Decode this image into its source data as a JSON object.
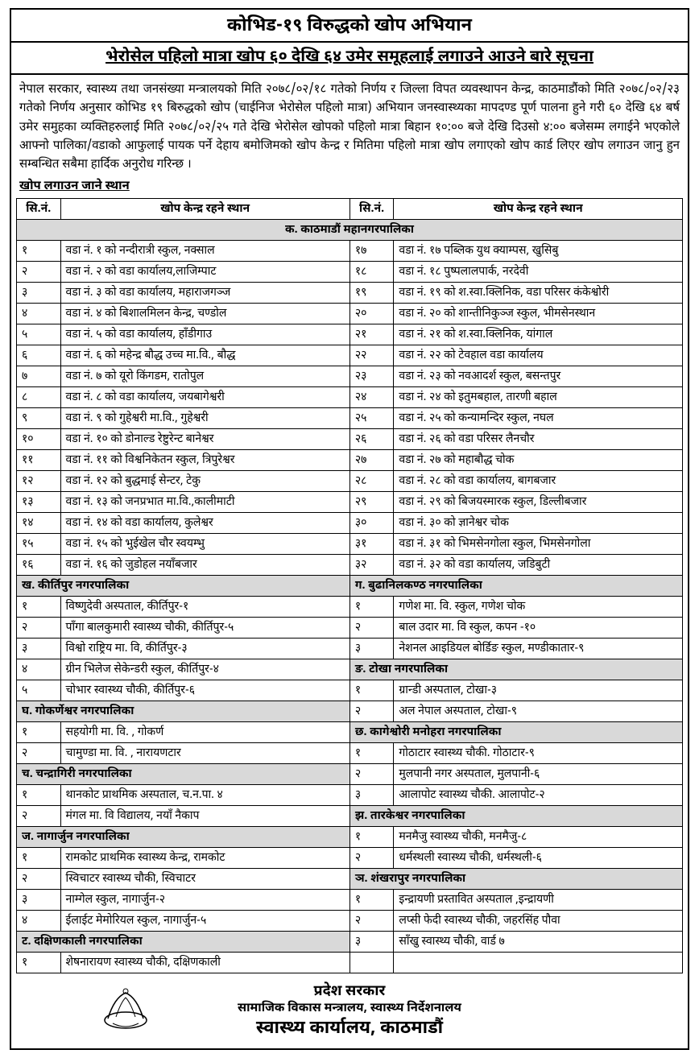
{
  "header": {
    "main": "कोभिड-१९ विरुद्धको खोप अभियान",
    "sub": "भेरोसेल पहिलो मात्रा खोप ६० देखि ६४ उमेर समूहलाई लगाउने आउने बारे सूचना"
  },
  "notice": "नेपाल सरकार, स्वास्थ्य तथा जनसंख्या मन्त्रालयको मिति २०७८/०२/१८ गतेको निर्णय र जिल्ला विपत व्यवस्थापन केन्द्र, काठमाडौंको मिति २०७८/०२/२३ गतेको निर्णय अनुसार कोभिड १९ बिरुद्धको खोप (चाईनिज भेरोसेल पहिलो मात्रा) अभियान जनस्वास्थ्यका मापदण्ड पूर्ण पालना हुने गरी ६० देखि ६४ बर्ष उमेर समुहका व्यक्तिहरुलाई मिति २०७८/०२/२५ गते देखि भेरोसेल खोपको पहिलो मात्रा बिहान १०:०० बजे देखि दिउसो ४:०० बजेसम्म लगाईने भएकोले आफ्नो पालिका/वडाको आफुलाई पायक पर्ने देहाय बमोजिमको खोप केन्द्र र मितिमा पहिलो मात्रा खोप लगाएको खोप कार्ड लिएर खोप लगाउन जानु हुन सम्बन्धित सबैमा हार्दिक अनुरोध गरिन्छ ।",
  "sectionLabel": "खोप लगाउन जाने स्थान",
  "columns": {
    "sn": "सि.नं.",
    "loc": "खोप केन्द्र रहने स्थान"
  },
  "ktmHeader": "क. काठमाडौं महानगरपालिका",
  "ktm": [
    {
      "ln": "१",
      "ll": "वडा नं. १ को नन्दीरात्री स्कुल, नक्साल",
      "rn": "१७",
      "rl": "वडा नं. १७ पब्लिक युथ क्याम्पस, खुसिबु"
    },
    {
      "ln": "२",
      "ll": "वडा नं. २ को वडा कार्यालय,लाजिम्पाट",
      "rn": "१८",
      "rl": "वडा नं. १८ पुष्पलालपार्क, नरदेवी"
    },
    {
      "ln": "३",
      "ll": "वडा नं. ३ को वडा कार्यालय, महाराजगञ्ज",
      "rn": "१९",
      "rl": "वडा नं. १९ को श.स्वा.क्लिनिक, वडा परिसर कंकेश्वोरी"
    },
    {
      "ln": "४",
      "ll": "वडा नं. ४ को बिशालमिलन केन्द्र, चण्डोल",
      "rn": "२०",
      "rl": "वडा नं. २० को शान्तीनिकुञ्ज स्कुल, भीमसेनस्थान"
    },
    {
      "ln": "५",
      "ll": "वडा नं. ५ को वडा कार्यालय, हाँडीगाउ",
      "rn": "२१",
      "rl": "वडा नं. २१ को श.स्वा.क्लिनिक, यांगाल"
    },
    {
      "ln": "६",
      "ll": "वडा नं. ६ को महेन्द्र बौद्ध उच्च मा.वि., बौद्ध",
      "rn": "२२",
      "rl": "वडा नं. २२ को टेवहाल वडा कार्यालय"
    },
    {
      "ln": "७",
      "ll": "वडा नं. ७ को यूरो किंगडम, रातोपुल",
      "rn": "२३",
      "rl": "वडा नं. २३ को नवआदर्श स्कुल, बसन्तपुर"
    },
    {
      "ln": "८",
      "ll": "वडा नं. ८ को वडा कार्यालय, जयबागेश्वरी",
      "rn": "२४",
      "rl": "वडा नं. २४ को इतुमबहाल, तारणी बहाल"
    },
    {
      "ln": "९",
      "ll": "वडा नं. ९ को गुहेश्वरी मा.वि., गुहेश्वरी",
      "rn": "२५",
      "rl": "वडा नं. २५ को कन्यामन्दिर स्कुल, नघल"
    },
    {
      "ln": "१०",
      "ll": "वडा नं. १० को डोनाल्ड रेष्टुरेन्ट बानेश्वर",
      "rn": "२६",
      "rl": "वडा नं. २६ को वडा परिसर लैनचौर"
    },
    {
      "ln": "११",
      "ll": "वडा नं. ११ को विश्वनिकेतन स्कुल, त्रिपुरेश्वर",
      "rn": "२७",
      "rl": "वडा नं. २७ को महाबौद्ध चोक"
    },
    {
      "ln": "१२",
      "ll": "वडा नं. १२ को बुद्धमाई सेन्टर, टेकु",
      "rn": "२८",
      "rl": "वडा नं. २८ को वडा कार्यालय, बागबजार"
    },
    {
      "ln": "१३",
      "ll": "वडा नं. १३ को जनप्रभात मा.वि.,कालीमाटी",
      "rn": "२९",
      "rl": "वडा नं. २९ को बिजयस्मारक स्कुल, डिल्लीबजार"
    },
    {
      "ln": "१४",
      "ll": "वडा नं. १४ को वडा कार्यालय, कुलेश्वर",
      "rn": "३०",
      "rl": "वडा नं. ३० को ज्ञानेश्वर चोक"
    },
    {
      "ln": "१५",
      "ll": "वडा नं. १५ को भुईखेल चौर स्वयम्भु",
      "rn": "३१",
      "rl": "वडा नं. ३१ को भिमसेनगोला स्कुल, भिमसेनगोला"
    },
    {
      "ln": "१६",
      "ll": "वडा नं. १६ को जुडोहल नयाँबजार",
      "rn": "३२",
      "rl": "वडा नं. ३२ को वडा कार्यालय, जडिबुटी"
    }
  ],
  "lower": [
    {
      "type": "header",
      "left": "ख. कीर्तिपुर नगरपालिका",
      "right": "ग. बुढानिलकण्ठ नगरपालिका"
    },
    {
      "type": "row",
      "ls": "१",
      "ll": "विष्णुदेवी अस्पताल, कीर्तिपुर-१",
      "rs": "१",
      "rl": "गणेश मा. वि. स्कुल, गणेश  चोक"
    },
    {
      "type": "row",
      "ls": "२",
      "ll": "पाँगा बालकुमारी स्वास्थ्य चौकी, कीर्तिपुर-५",
      "rs": "२",
      "rl": "बाल उदार मा. वि स्कुल, कपन -१०"
    },
    {
      "type": "row",
      "ls": "३",
      "ll": "विश्वो राष्ट्रिय मा. वि, कीर्तिपुर-३",
      "rs": "३",
      "rl": "नेशनल आइडियल बोर्डिङ स्कुल, मण्डीकातार-९"
    },
    {
      "type": "lheader",
      "ls": "४",
      "ll": "ग्रीन भिलेज सेकेन्डरी स्कुल, कीर्तिपुर-४",
      "right": "ङ. टोखा नगरपालिका"
    },
    {
      "type": "row",
      "ls": "५",
      "ll": "चोभार स्वास्थ्य चौकी, कीर्तिपुर-६",
      "rs": "१",
      "rl": "ग्रान्डी अस्पताल, टोखा-३"
    },
    {
      "type": "rrow",
      "left": "घ. गोकर्णेश्वर नगरपालिका",
      "rs": "२",
      "rl": "अल नेपाल अस्पताल, टोखा-९"
    },
    {
      "type": "lheader",
      "ls": "१",
      "ll": "सहयोगी मा. वि. , गोकर्ण",
      "right": "छ. कागेश्वोरी मनोहरा नगरपालिका"
    },
    {
      "type": "row",
      "ls": "२",
      "ll": "चामुण्डा मा. वि. , नारायणटार",
      "rs": "१",
      "rl": "गोठाटार स्वास्थ्य चौकी. गोठाटार-९"
    },
    {
      "type": "rrow",
      "left": "च. चन्द्रागिरी नगरपालिका",
      "rs": "२",
      "rl": "मुलपानी नगर अस्पताल, मुलपानी-६"
    },
    {
      "type": "row",
      "ls": "१",
      "ll": "थानकोट प्राथमिक अस्पताल, च.न.पा. ४",
      "rs": "३",
      "rl": "आलापोट स्वास्थ्य चौकी. आलापोट-२"
    },
    {
      "type": "lheader",
      "ls": "२",
      "ll": "मंगल मा. वि विद्यालय, नयाँ नैकाप",
      "right": "झ. तारकेश्वर नगरपालिका"
    },
    {
      "type": "rrow",
      "left": "ज. नागार्जुन नगरपालिका",
      "rs": "१",
      "rl": "मनमैजु स्वास्थ्य चौकी, मनमैजु-८"
    },
    {
      "type": "row",
      "ls": "१",
      "ll": "रामकोट प्राथमिक स्वास्थ्य केन्द्र, रामकोट",
      "rs": "२",
      "rl": "धर्मस्थली स्वास्थ्य चौकी, धर्मस्थली-६"
    },
    {
      "type": "lheader",
      "ls": "२",
      "ll": "स्विचाटर स्वास्थ्य चौकी, स्विचाटर",
      "right": "ञ. शंखरापुर नगरपालिका"
    },
    {
      "type": "row",
      "ls": "३",
      "ll": "नाम्गेल स्कुल, नागार्जुन-२",
      "rs": "१",
      "rl": "इन्द्रायणी प्रस्तावित अस्पताल ,इन्द्रायणी"
    },
    {
      "type": "row",
      "ls": "४",
      "ll": "ईलाईट मेमोरियल स्कुल, नागार्जुन-५",
      "rs": "२",
      "rl": "लप्सी फेदी स्वास्थ्य चौकी, जहरसिंह पौवा"
    },
    {
      "type": "rrow",
      "left": "ट. दक्षिणकाली नगरपालिका",
      "rs": "३",
      "rl": "साँखु स्वास्थ्य चौकी, वार्ड ७"
    },
    {
      "type": "row",
      "ls": "१",
      "ll": "शेषनारायण स्वास्थ्य चौकी, दक्षिणकाली",
      "rs": "",
      "rl": ""
    }
  ],
  "footer": {
    "l1": "प्रदेश सरकार",
    "l2": "सामाजिक विकास मन्त्रालय, स्वास्थ्य निर्देशनालय",
    "l3": "स्वास्थ्य कार्यालय, काठमाडौं"
  },
  "style": {
    "border": "#000000",
    "bg": "#ffffff",
    "shade": "#d9d9d9",
    "fsTitle": 22,
    "fsSub": 20,
    "fsBody": 15,
    "fsCell": 14
  }
}
